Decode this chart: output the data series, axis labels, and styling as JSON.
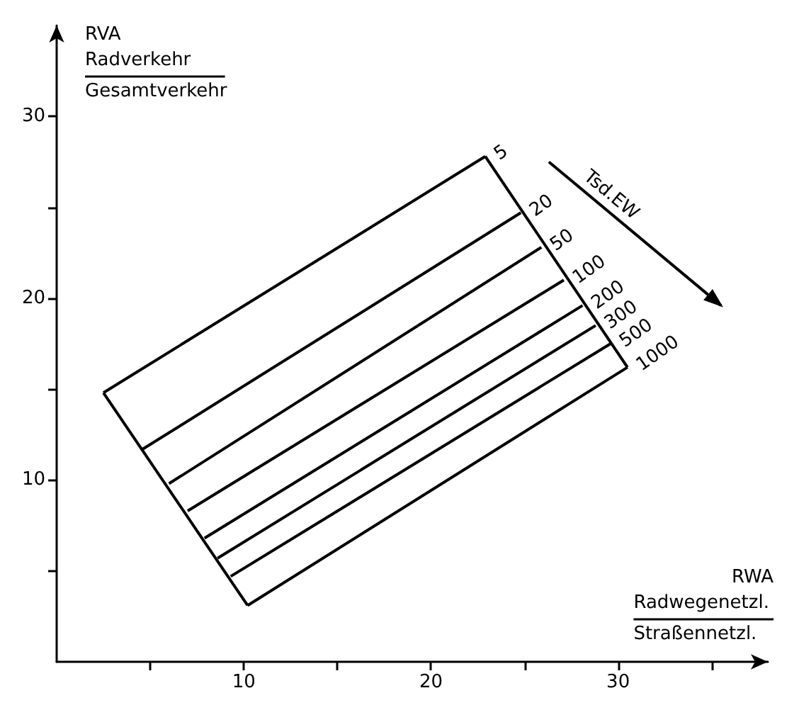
{
  "chart_data": {
    "type": "line",
    "xlabel": "RWA\nRadwegenetzl.\nStraßennetzl.",
    "ylabel": "RVA\nRadverkehr\nGesamtverkehr",
    "legend_title": "Tsd.EW",
    "series": [
      {
        "name": "5",
        "color": "#000000",
        "x": [
          2.5,
          22.9
        ],
        "values": [
          14.8,
          27.8
        ]
      },
      {
        "name": "20",
        "color": "#000000",
        "x": [
          4.6,
          24.8
        ],
        "values": [
          11.7,
          24.7
        ]
      },
      {
        "name": "50",
        "color": "#000000",
        "x": [
          6.0,
          25.9
        ],
        "values": [
          9.8,
          22.8
        ]
      },
      {
        "name": "100",
        "color": "#000000",
        "x": [
          7.0,
          27.1
        ],
        "values": [
          8.3,
          21.0
        ]
      },
      {
        "name": "200",
        "color": "#000000",
        "x": [
          7.9,
          28.1
        ],
        "values": [
          6.8,
          19.6
        ]
      },
      {
        "name": "300",
        "color": "#000000",
        "x": [
          8.6,
          28.8
        ],
        "values": [
          5.7,
          18.5
        ]
      },
      {
        "name": "500",
        "color": "#000000",
        "x": [
          9.3,
          29.6
        ],
        "values": [
          4.7,
          17.5
        ]
      },
      {
        "name": "1000",
        "color": "#000000",
        "x": [
          10.2,
          30.5
        ],
        "values": [
          3.1,
          16.2
        ]
      },
      {
        "color": "#000000",
        "x": [
          2.5,
          10.2
        ],
        "values": [
          14.8,
          3.1
        ]
      },
      {
        "color": "#000000",
        "x": [
          22.9,
          30.5
        ],
        "values": [
          27.8,
          16.2
        ]
      }
    ],
    "xlim": [
      0,
      38
    ],
    "ylim": [
      0,
      35
    ],
    "xticks": [
      {
        "value": 5,
        "label": null
      },
      10,
      {
        "value": 15,
        "label": null
      },
      20,
      {
        "value": 25,
        "label": null
      },
      30,
      {
        "value": 35,
        "label": null
      }
    ],
    "yticks": [
      {
        "value": 5,
        "label": null
      },
      10,
      {
        "value": 15,
        "label": null
      },
      20,
      {
        "value": 25,
        "label": null
      },
      30
    ],
    "grid": false,
    "legend": false,
    "marker": "none",
    "line_style": "solid"
  }
}
